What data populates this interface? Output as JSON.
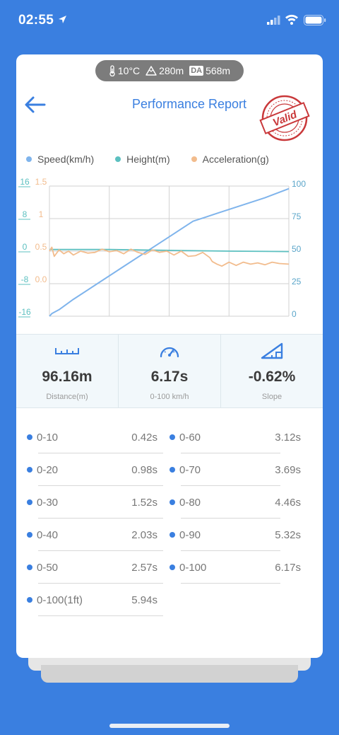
{
  "status": {
    "time": "02:55"
  },
  "env": {
    "temp": "10°C",
    "altitude": "280m",
    "da_badge": "DA",
    "da_value": "568m"
  },
  "header": {
    "title": "Performance Report",
    "stamp_text": "Valid"
  },
  "legend": {
    "speed": "Speed(km/h)",
    "height": "Height(m)",
    "acceleration": "Acceleration(g)"
  },
  "colors": {
    "speed": "#7fb4ec",
    "height": "#5cc0c0",
    "acceleration": "#f2bc8d",
    "accent": "#3a7fe0",
    "stamp": "#c9383a"
  },
  "chart_data": {
    "type": "line",
    "left_axis_height": [
      "16",
      "8",
      "0",
      "-8",
      "-16"
    ],
    "left_axis_accel": [
      "1.5",
      "1",
      "0.5",
      "0.0"
    ],
    "right_axis_speed": [
      "100",
      "75",
      "50",
      "25",
      "0"
    ],
    "speed_range": [
      0,
      100
    ],
    "height_range": [
      -16,
      16
    ],
    "accel_range": [
      -0.5,
      1.5
    ],
    "x_range": [
      0,
      100
    ],
    "series": [
      {
        "name": "Speed(km/h)",
        "axis": "right",
        "x": [
          0,
          1,
          4,
          10,
          20,
          30,
          40,
          50,
          60,
          65,
          70,
          80,
          90,
          100
        ],
        "values": [
          0,
          2,
          5,
          13,
          25,
          37,
          49,
          61,
          73,
          76,
          79,
          85,
          91,
          98
        ]
      },
      {
        "name": "Height(m)",
        "axis": "left",
        "x": [
          0,
          25,
          50,
          75,
          100
        ],
        "values": [
          0.4,
          0.4,
          0.2,
          0.0,
          -0.1
        ]
      },
      {
        "name": "Acceleration(g)",
        "axis": "left-accel",
        "x": [
          0,
          1,
          2,
          4,
          6,
          8,
          10,
          13,
          16,
          19,
          22,
          25,
          28,
          31,
          34,
          37,
          40,
          43,
          46,
          49,
          52,
          55,
          58,
          61,
          64,
          67,
          68,
          70,
          72,
          75,
          78,
          81,
          84,
          87,
          90,
          93,
          96,
          100
        ],
        "values": [
          0.5,
          0.56,
          0.42,
          0.52,
          0.46,
          0.5,
          0.44,
          0.5,
          0.47,
          0.48,
          0.53,
          0.49,
          0.51,
          0.46,
          0.53,
          0.48,
          0.45,
          0.52,
          0.48,
          0.5,
          0.44,
          0.5,
          0.42,
          0.43,
          0.48,
          0.4,
          0.34,
          0.3,
          0.27,
          0.33,
          0.28,
          0.33,
          0.3,
          0.32,
          0.29,
          0.33,
          0.31,
          0.3
        ]
      }
    ]
  },
  "metrics": [
    {
      "value": "96.16m",
      "label": "Distance(m)"
    },
    {
      "value": "6.17s",
      "label": "0-100 km/h"
    },
    {
      "value": "-0.62%",
      "label": "Slope"
    }
  ],
  "splits": [
    {
      "label": "0-10",
      "time": "0.42s"
    },
    {
      "label": "0-20",
      "time": "0.98s"
    },
    {
      "label": "0-30",
      "time": "1.52s"
    },
    {
      "label": "0-40",
      "time": "2.03s"
    },
    {
      "label": "0-50",
      "time": "2.57s"
    },
    {
      "label": "0-100(1ft)",
      "time": "5.94s"
    },
    {
      "label": "0-60",
      "time": "3.12s"
    },
    {
      "label": "0-70",
      "time": "3.69s"
    },
    {
      "label": "0-80",
      "time": "4.46s"
    },
    {
      "label": "0-90",
      "time": "5.32s"
    },
    {
      "label": "0-100",
      "time": "6.17s"
    }
  ]
}
